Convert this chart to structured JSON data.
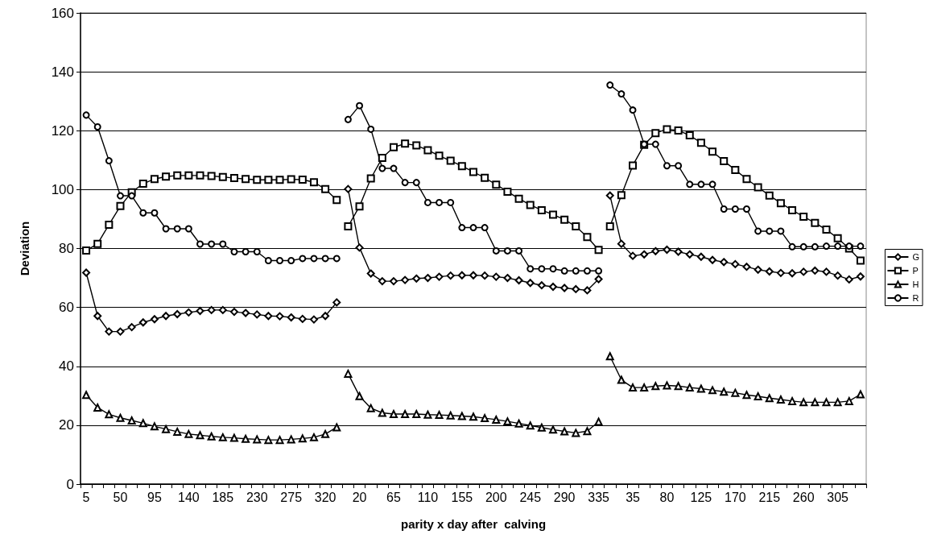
{
  "chart_data": {
    "type": "line",
    "xlabel": "parity x day after  calving",
    "ylabel": "Deviation",
    "categories": [
      "5",
      null,
      null,
      "50",
      null,
      null,
      "95",
      null,
      null,
      "140",
      null,
      null,
      "185",
      null,
      null,
      "230",
      null,
      null,
      "275",
      null,
      null,
      "320",
      null,
      null,
      "20",
      null,
      null,
      "65",
      null,
      null,
      "110",
      null,
      null,
      "155",
      null,
      null,
      "200",
      null,
      null,
      "245",
      null,
      null,
      "290",
      null,
      null,
      "335",
      null,
      null,
      "35",
      null,
      null,
      "80",
      null,
      null,
      "125",
      null,
      null,
      "170",
      null,
      null,
      "215",
      null,
      null,
      "260",
      null,
      null,
      "305",
      null,
      null
    ],
    "series": [
      {
        "name": "G",
        "color": "#000000",
        "marker": "diamond",
        "values": [
          71.8,
          57.1,
          51.8,
          51.8,
          53.3,
          54.9,
          56.0,
          57.1,
          57.7,
          58.3,
          58.8,
          59.1,
          59.1,
          58.5,
          58.1,
          57.6,
          57.1,
          57.0,
          56.6,
          56.1,
          55.9,
          57.1,
          61.7,
          null,
          null,
          null,
          null,
          null,
          null,
          null,
          null,
          null,
          null,
          null,
          null,
          null,
          null,
          null,
          null,
          null,
          null,
          null,
          null,
          null,
          null,
          null,
          null,
          null,
          null,
          null,
          null,
          null,
          null,
          null,
          null,
          null,
          null,
          null,
          null,
          null,
          null,
          null,
          null,
          null,
          null,
          null,
          null,
          null,
          null
        ]
      },
      {
        "name": "P",
        "color": "#000000",
        "marker": "square",
        "values": [
          79.3,
          81.6,
          88.1,
          94.4,
          99.1,
          102.0,
          103.6,
          104.4,
          104.8,
          104.8,
          104.8,
          104.6,
          104.3,
          103.9,
          103.6,
          103.3,
          103.3,
          103.3,
          103.5,
          103.4,
          102.5,
          100.2,
          96.5,
          null,
          null,
          null,
          null,
          null,
          null,
          null,
          null,
          null,
          null,
          null,
          null,
          null,
          null,
          null,
          null,
          null,
          null,
          null,
          null,
          null,
          null,
          null,
          null,
          null,
          null,
          null,
          null,
          null,
          null,
          null,
          null,
          null,
          null,
          null,
          null,
          null,
          null,
          null,
          null,
          null,
          null,
          null,
          null,
          null,
          null
        ]
      },
      {
        "name": "H",
        "color": "#000000",
        "marker": "triangle",
        "values": [
          30.3,
          26.0,
          23.7,
          22.5,
          21.6,
          20.7,
          19.6,
          18.7,
          17.8,
          17.0,
          16.6,
          16.2,
          15.9,
          15.7,
          15.4,
          15.2,
          15.0,
          15.0,
          15.2,
          15.5,
          15.9,
          17.0,
          19.3,
          null,
          null,
          null,
          null,
          null,
          null,
          null,
          null,
          null,
          null,
          null,
          null,
          null,
          null,
          null,
          null,
          null,
          null,
          null,
          null,
          null,
          null,
          null,
          null,
          null,
          null,
          null,
          null,
          null,
          null,
          null,
          null,
          null,
          null,
          null,
          null,
          null,
          null,
          null,
          null,
          null,
          null,
          null,
          null,
          null,
          null
        ]
      },
      {
        "name": "R",
        "color": "#000000",
        "marker": "circle",
        "values": [
          125.3,
          121.3,
          109.8,
          97.9,
          97.9,
          92.1,
          92.1,
          86.7,
          86.7,
          86.7,
          81.5,
          81.5,
          81.5,
          78.9,
          78.9,
          78.9,
          75.9,
          75.9,
          75.9,
          76.6,
          76.6,
          76.6,
          76.6,
          null,
          null,
          null,
          null,
          null,
          null,
          null,
          null,
          null,
          null,
          null,
          null,
          null,
          null,
          null,
          null,
          null,
          null,
          null,
          null,
          null,
          null,
          null,
          null,
          null,
          null,
          null,
          null,
          null,
          null,
          null,
          null,
          null,
          null,
          null,
          null,
          null,
          null,
          null,
          null,
          null,
          null,
          null,
          null,
          null,
          null
        ]
      },
      {
        "color": "#000000",
        "marker": "diamond",
        "values": [
          null,
          null,
          null,
          null,
          null,
          null,
          null,
          null,
          null,
          null,
          null,
          null,
          null,
          null,
          null,
          null,
          null,
          null,
          null,
          null,
          null,
          null,
          null,
          100.2,
          80.3,
          71.5,
          68.9,
          68.9,
          69.3,
          69.8,
          70.0,
          70.4,
          70.8,
          70.9,
          70.9,
          70.8,
          70.4,
          70.0,
          69.2,
          68.3,
          67.5,
          67.0,
          66.6,
          66.2,
          65.8,
          69.6,
          null,
          null,
          null,
          null,
          null,
          null,
          null,
          null,
          null,
          null,
          null,
          null,
          null,
          null,
          null,
          null,
          null,
          null,
          null,
          null,
          null,
          null,
          null
        ]
      },
      {
        "color": "#000000",
        "marker": "square",
        "values": [
          null,
          null,
          null,
          null,
          null,
          null,
          null,
          null,
          null,
          null,
          null,
          null,
          null,
          null,
          null,
          null,
          null,
          null,
          null,
          null,
          null,
          null,
          null,
          87.5,
          94.3,
          103.8,
          110.8,
          114.4,
          115.6,
          115.0,
          113.4,
          111.5,
          109.8,
          108.0,
          106.0,
          104.0,
          101.7,
          99.3,
          96.9,
          94.8,
          93.0,
          91.5,
          89.8,
          87.5,
          83.9,
          79.5,
          null,
          null,
          null,
          null,
          null,
          null,
          null,
          null,
          null,
          null,
          null,
          null,
          null,
          null,
          null,
          null,
          null,
          null,
          null,
          null,
          null,
          null,
          null
        ]
      },
      {
        "color": "#000000",
        "marker": "triangle",
        "values": [
          null,
          null,
          null,
          null,
          null,
          null,
          null,
          null,
          null,
          null,
          null,
          null,
          null,
          null,
          null,
          null,
          null,
          null,
          null,
          null,
          null,
          null,
          null,
          37.5,
          29.9,
          25.8,
          24.2,
          23.8,
          23.8,
          23.8,
          23.6,
          23.5,
          23.3,
          23.1,
          22.9,
          22.4,
          21.9,
          21.3,
          20.6,
          19.9,
          19.2,
          18.5,
          17.9,
          17.4,
          18.0,
          21.2,
          null,
          null,
          null,
          null,
          null,
          null,
          null,
          null,
          null,
          null,
          null,
          null,
          null,
          null,
          null,
          null,
          null,
          null,
          null,
          null,
          null,
          null,
          null
        ]
      },
      {
        "color": "#000000",
        "marker": "circle",
        "values": [
          null,
          null,
          null,
          null,
          null,
          null,
          null,
          null,
          null,
          null,
          null,
          null,
          null,
          null,
          null,
          null,
          null,
          null,
          null,
          null,
          null,
          null,
          null,
          123.8,
          128.5,
          120.5,
          107.2,
          107.2,
          102.4,
          102.4,
          95.6,
          95.6,
          95.6,
          87.1,
          87.1,
          87.1,
          79.2,
          79.2,
          79.2,
          73.1,
          73.1,
          73.1,
          72.4,
          72.4,
          72.4,
          72.4,
          null,
          null,
          null,
          null,
          null,
          null,
          null,
          null,
          null,
          null,
          null,
          null,
          null,
          null,
          null,
          null,
          null,
          null,
          null,
          null,
          null,
          null,
          null
        ]
      },
      {
        "color": "#000000",
        "marker": "diamond",
        "values": [
          null,
          null,
          null,
          null,
          null,
          null,
          null,
          null,
          null,
          null,
          null,
          null,
          null,
          null,
          null,
          null,
          null,
          null,
          null,
          null,
          null,
          null,
          null,
          null,
          null,
          null,
          null,
          null,
          null,
          null,
          null,
          null,
          null,
          null,
          null,
          null,
          null,
          null,
          null,
          null,
          null,
          null,
          null,
          null,
          null,
          null,
          98.0,
          81.6,
          77.5,
          78.0,
          79.1,
          79.6,
          78.9,
          78.0,
          77.2,
          76.1,
          75.4,
          74.7,
          73.8,
          72.8,
          72.2,
          71.7,
          71.6,
          72.1,
          72.5,
          72.1,
          70.8,
          69.5,
          70.5
        ]
      },
      {
        "color": "#000000",
        "marker": "square",
        "values": [
          null,
          null,
          null,
          null,
          null,
          null,
          null,
          null,
          null,
          null,
          null,
          null,
          null,
          null,
          null,
          null,
          null,
          null,
          null,
          null,
          null,
          null,
          null,
          null,
          null,
          null,
          null,
          null,
          null,
          null,
          null,
          null,
          null,
          null,
          null,
          null,
          null,
          null,
          null,
          null,
          null,
          null,
          null,
          null,
          null,
          null,
          87.5,
          98.1,
          108.2,
          115.2,
          119.2,
          120.5,
          120.1,
          118.4,
          115.9,
          112.9,
          109.7,
          106.7,
          103.6,
          100.8,
          98.0,
          95.4,
          93.0,
          90.8,
          88.7,
          86.4,
          83.5,
          80.0,
          75.9
        ]
      },
      {
        "color": "#000000",
        "marker": "triangle",
        "values": [
          null,
          null,
          null,
          null,
          null,
          null,
          null,
          null,
          null,
          null,
          null,
          null,
          null,
          null,
          null,
          null,
          null,
          null,
          null,
          null,
          null,
          null,
          null,
          null,
          null,
          null,
          null,
          null,
          null,
          null,
          null,
          null,
          null,
          null,
          null,
          null,
          null,
          null,
          null,
          null,
          null,
          null,
          null,
          null,
          null,
          null,
          43.4,
          35.4,
          32.8,
          32.8,
          33.3,
          33.5,
          33.3,
          32.8,
          32.4,
          31.9,
          31.4,
          31.0,
          30.3,
          29.8,
          29.2,
          28.7,
          28.2,
          27.8,
          27.8,
          27.8,
          27.8,
          28.2,
          30.5
        ]
      },
      {
        "color": "#000000",
        "marker": "circle",
        "values": [
          null,
          null,
          null,
          null,
          null,
          null,
          null,
          null,
          null,
          null,
          null,
          null,
          null,
          null,
          null,
          null,
          null,
          null,
          null,
          null,
          null,
          null,
          null,
          null,
          null,
          null,
          null,
          null,
          null,
          null,
          null,
          null,
          null,
          null,
          null,
          null,
          null,
          null,
          null,
          null,
          null,
          null,
          null,
          null,
          null,
          null,
          135.5,
          132.5,
          127.0,
          115.4,
          115.4,
          108.1,
          108.1,
          101.8,
          101.8,
          101.8,
          93.4,
          93.4,
          93.4,
          85.9,
          85.9,
          85.9,
          80.6,
          80.6,
          80.6,
          80.8,
          80.8,
          80.8,
          80.8
        ]
      }
    ],
    "ylim": [
      0,
      160
    ],
    "yticks": [
      0,
      20,
      40,
      60,
      80,
      100,
      120,
      140,
      160
    ],
    "grid": "y",
    "legend": "right",
    "line_style": "solid"
  }
}
